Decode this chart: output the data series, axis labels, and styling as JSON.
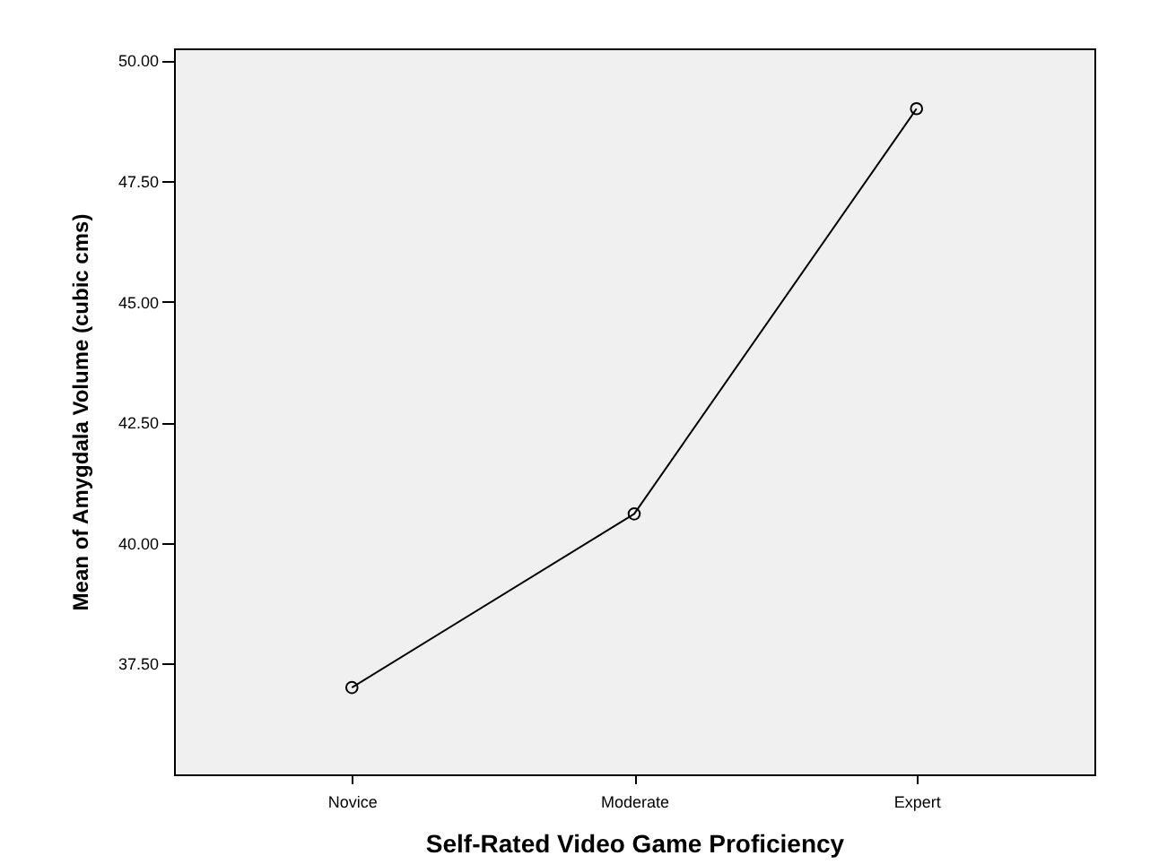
{
  "chart_data": {
    "type": "line",
    "xlabel": "Self-Rated Video Game Proficiency",
    "ylabel": "Mean of Amygdala Volume (cubic cms)",
    "categories": [
      "Novice",
      "Moderate",
      "Expert"
    ],
    "series": [
      {
        "color": "#000000",
        "values": [
          37.0,
          40.6,
          49.0
        ]
      }
    ],
    "ylim": [
      35.2,
      50.25
    ],
    "yticks": [
      {
        "value": 37.5,
        "label": "37.50"
      },
      {
        "value": 40,
        "label": "40.00"
      },
      {
        "value": 42.5,
        "label": "42.50"
      },
      {
        "value": 45,
        "label": "45.00"
      },
      {
        "value": 47.5,
        "label": "47.50"
      },
      {
        "value": 50,
        "label": "50.00"
      }
    ],
    "marker": "circle",
    "line_style": "solid",
    "grid": false
  }
}
